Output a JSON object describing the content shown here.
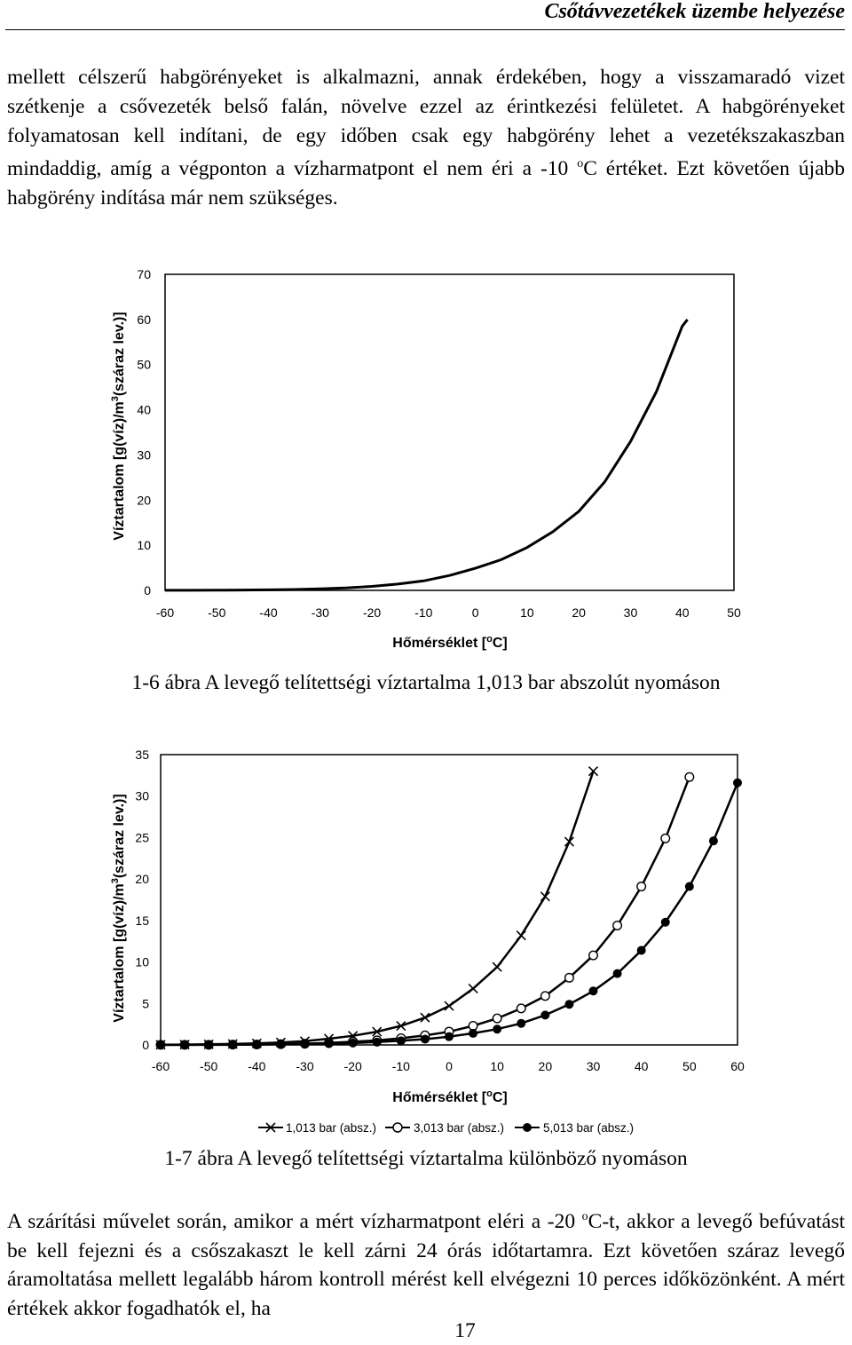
{
  "header": {
    "title": "Csőtávvezetékek üzembe helyezése"
  },
  "paragraph1": {
    "part1": "mellett célszerű habgörényeket is alkalmazni, annak érdekében, hogy a visszamaradó vizet szétkenje a csővezeték belső falán, növelve ezzel az érintkezési felületet. A habgörényeket folyamatosan kell indítani, de egy időben csak egy habgörény lehet a vezetékszakaszban mindaddig, amíg a végponton a vízharmatpont el nem éri a -10 ",
    "sup": "o",
    "part2": "C értéket. Ezt követően újabb habgörény indítása már nem szükséges."
  },
  "figure1": {
    "caption": "1-6 ábra A levegő telítettségi víztartalma 1,013 bar abszolút nyomáson"
  },
  "figure2": {
    "caption": "1-7 ábra A levegő telítettségi víztartalma különböző nyomáson"
  },
  "paragraph2": {
    "part1": "A szárítási művelet során, amikor a mért vízharmatpont eléri a -20 ",
    "sup": "o",
    "part2": "C-t, akkor a levegő befúvatást be kell fejezni és a csőszakaszt le kell zárni 24 órás időtartamra. Ezt követően száraz levegő áramoltatása mellett legalább három kontroll mérést kell elvégezni 10 perces időközönként. A mért értékek akkor fogadhatók el, ha"
  },
  "page": {
    "number": "17"
  },
  "chart_data": [
    {
      "type": "line",
      "title": "",
      "xlabel": "Hőmérséklet [oC]",
      "xlabel_parts": [
        "Hőmérséklet [",
        "o",
        "C]"
      ],
      "ylabel": "Víztartalom [g(víz)/m3(száraz lev.)]",
      "ylabel_parts": [
        "Víztartalom [g(víz)/m",
        "3",
        "(száraz lev.)]"
      ],
      "xlim": [
        -60,
        50
      ],
      "ylim": [
        0,
        70
      ],
      "x_ticks": [
        -60,
        -50,
        -40,
        -30,
        -20,
        -10,
        0,
        10,
        20,
        30,
        40,
        50
      ],
      "y_ticks": [
        0,
        10,
        20,
        30,
        40,
        50,
        60,
        70
      ],
      "grid": false,
      "series": [
        {
          "name": "1,013 bar (absz.)",
          "x": [
            -60,
            -55,
            -50,
            -45,
            -40,
            -35,
            -30,
            -25,
            -20,
            -15,
            -10,
            -5,
            0,
            5,
            10,
            15,
            20,
            25,
            30,
            35,
            40,
            45
          ],
          "y": [
            0.01,
            0.02,
            0.04,
            0.07,
            0.12,
            0.2,
            0.33,
            0.55,
            0.88,
            1.4,
            2.1,
            3.3,
            4.9,
            6.8,
            9.5,
            13,
            17.5,
            24,
            33,
            44,
            58.5,
            60
          ]
        }
      ],
      "curve_x_end": 41
    },
    {
      "type": "line",
      "title": "",
      "xlabel": "Hőmérséklet [oC]",
      "xlabel_parts": [
        "Hőmérséklet [",
        "o",
        "C]"
      ],
      "ylabel": "Víztartalom [g(víz)/m3(száraz lev.)]",
      "ylabel_parts": [
        "Víztartalom [g(víz)/m",
        "3",
        "(száraz lev.)]"
      ],
      "xlim": [
        -60,
        60
      ],
      "ylim": [
        0,
        35
      ],
      "x_ticks": [
        -60,
        -50,
        -40,
        -30,
        -20,
        -10,
        0,
        10,
        20,
        30,
        40,
        50,
        60
      ],
      "y_ticks": [
        0,
        5,
        10,
        15,
        20,
        25,
        30,
        35
      ],
      "grid": false,
      "legend_position": "bottom",
      "series": [
        {
          "name": "1,013 bar (absz.)",
          "marker": "x",
          "x": [
            -60,
            -55,
            -50,
            -45,
            -40,
            -35,
            -30,
            -25,
            -20,
            -15,
            -10,
            -5,
            0,
            5,
            10,
            15,
            20,
            25,
            30
          ],
          "y": [
            0.02,
            0.04,
            0.07,
            0.12,
            0.18,
            0.3,
            0.45,
            0.75,
            1.1,
            1.6,
            2.3,
            3.3,
            4.7,
            6.8,
            9.4,
            13.2,
            17.9,
            24.5,
            33.0
          ]
        },
        {
          "name": "3,013 bar (absz.)",
          "marker": "circle-open",
          "x": [
            -60,
            -55,
            -50,
            -45,
            -40,
            -35,
            -30,
            -25,
            -20,
            -15,
            -10,
            -5,
            0,
            5,
            10,
            15,
            20,
            25,
            30,
            35,
            40,
            45,
            50
          ],
          "y": [
            0.01,
            0.01,
            0.02,
            0.04,
            0.06,
            0.1,
            0.15,
            0.25,
            0.38,
            0.55,
            0.8,
            1.15,
            1.6,
            2.3,
            3.2,
            4.4,
            5.9,
            8.1,
            10.8,
            14.4,
            19.1,
            24.9,
            32.3
          ]
        },
        {
          "name": "5,013 bar (absz.)",
          "marker": "circle-filled",
          "x": [
            -60,
            -55,
            -50,
            -45,
            -40,
            -35,
            -30,
            -25,
            -20,
            -15,
            -10,
            -5,
            0,
            5,
            10,
            15,
            20,
            25,
            30,
            35,
            40,
            45,
            50,
            55,
            60
          ],
          "y": [
            0.0,
            0.01,
            0.01,
            0.02,
            0.04,
            0.06,
            0.09,
            0.15,
            0.23,
            0.34,
            0.5,
            0.7,
            1.0,
            1.4,
            1.9,
            2.6,
            3.6,
            4.9,
            6.5,
            8.6,
            11.4,
            14.8,
            19.1,
            24.6,
            31.6
          ]
        }
      ]
    }
  ]
}
